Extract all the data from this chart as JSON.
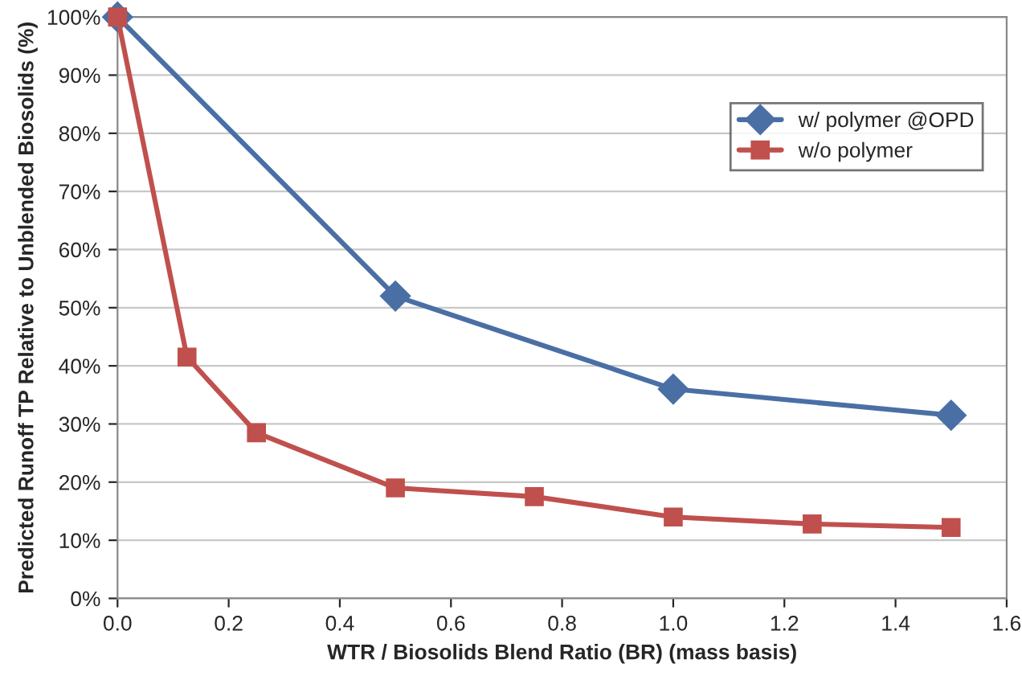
{
  "chart_data": {
    "type": "line",
    "xlabel": "WTR / Biosolids Blend Ratio (BR) (mass basis)",
    "ylabel": "Predicted Runoff TP Relative to Unblended Biosolids (%)",
    "series": [
      {
        "name": "w/ polymer @OPD",
        "color": "#4a6fa5",
        "marker": "diamond",
        "x": [
          0,
          0.5,
          1.0,
          1.5
        ],
        "values": [
          100,
          52,
          36,
          31.5
        ]
      },
      {
        "name": "w/o polymer",
        "color": "#c0504d",
        "marker": "square",
        "x": [
          0,
          0.125,
          0.25,
          0.5,
          0.75,
          1.0,
          1.25,
          1.5
        ],
        "values": [
          100,
          41.5,
          28.5,
          19,
          17.5,
          14,
          12.8,
          12.2
        ]
      }
    ],
    "xlim": [
      0,
      1.6
    ],
    "xticks": [
      {
        "value": 0,
        "label": "0.0"
      },
      {
        "value": 0.2,
        "label": "0.2"
      },
      {
        "value": 0.4,
        "label": "0.4"
      },
      {
        "value": 0.6,
        "label": "0.6"
      },
      {
        "value": 0.8,
        "label": "0.8"
      },
      {
        "value": 1.0,
        "label": "1.0"
      },
      {
        "value": 1.2,
        "label": "1.2"
      },
      {
        "value": 1.4,
        "label": "1.4"
      },
      {
        "value": 1.6,
        "label": "1.6"
      }
    ],
    "ylim": [
      0,
      100
    ],
    "yticks": [
      {
        "value": 0,
        "label": "0%"
      },
      {
        "value": 10,
        "label": "10%"
      },
      {
        "value": 20,
        "label": "20%"
      },
      {
        "value": 30,
        "label": "30%"
      },
      {
        "value": 40,
        "label": "40%"
      },
      {
        "value": 50,
        "label": "50%"
      },
      {
        "value": 60,
        "label": "60%"
      },
      {
        "value": 70,
        "label": "70%"
      },
      {
        "value": 80,
        "label": "80%"
      },
      {
        "value": 90,
        "label": "90%"
      },
      {
        "value": 100,
        "label": "100%"
      }
    ],
    "grid": "y",
    "legend": "top right",
    "line_style": "solid"
  }
}
